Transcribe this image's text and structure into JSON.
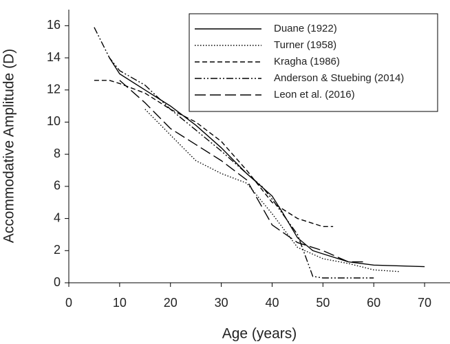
{
  "chart_data": {
    "type": "line",
    "x_label": "Age (years)",
    "y_label": "Accommodative Amplitude (D)",
    "xlim": [
      0,
      75
    ],
    "xticks": [
      0,
      10,
      20,
      30,
      40,
      50,
      60,
      70
    ],
    "ylim": [
      0,
      17
    ],
    "yticks": [
      0,
      2,
      4,
      6,
      8,
      10,
      12,
      14,
      16
    ],
    "legend": "top-right",
    "series": [
      {
        "name": "Duane (1922)",
        "color": "#000000",
        "style": "solid",
        "x": [
          8,
          10,
          15,
          20,
          25,
          30,
          35,
          40,
          42,
          45,
          48,
          50,
          55,
          60,
          70
        ],
        "values": [
          14,
          13,
          12,
          11,
          9.8,
          8.4,
          6.8,
          5.4,
          4.4,
          2.8,
          2.0,
          1.8,
          1.3,
          1.1,
          1.0
        ]
      },
      {
        "name": "Turner (1958)",
        "color": "#000000",
        "style": "dotted",
        "x": [
          15,
          20,
          25,
          30,
          35,
          40,
          45,
          50,
          55,
          60,
          65
        ],
        "values": [
          10.8,
          9.2,
          7.6,
          6.8,
          6.2,
          4.3,
          2.2,
          1.5,
          1.2,
          0.8,
          0.7
        ]
      },
      {
        "name": "Kragha (1986)",
        "color": "#000000",
        "style": "dashed",
        "x": [
          5,
          8,
          10,
          15,
          20,
          25,
          30,
          35,
          40,
          45,
          50,
          52
        ],
        "values": [
          12.6,
          12.6,
          12.4,
          11.8,
          10.8,
          10.0,
          8.8,
          7.0,
          5.0,
          4.0,
          3.5,
          3.5
        ]
      },
      {
        "name": "Anderson & Stuebing (2014)",
        "color": "#000000",
        "style": "dash-dot-dot",
        "x": [
          5,
          8,
          10,
          15,
          20,
          25,
          30,
          35,
          38,
          40,
          45,
          48,
          50,
          55,
          60
        ],
        "values": [
          15.9,
          14,
          13.2,
          12.3,
          10.8,
          9.5,
          8.2,
          6.8,
          6.0,
          5.2,
          3.0,
          0.4,
          0.3,
          0.3,
          0.3
        ]
      },
      {
        "name": "Leon et al. (2016)",
        "color": "#000000",
        "style": "long-dash",
        "x": [
          10,
          15,
          20,
          25,
          30,
          35,
          40,
          45,
          50,
          55,
          58
        ],
        "values": [
          12.6,
          11.2,
          9.6,
          8.6,
          7.6,
          6.4,
          3.6,
          2.5,
          2.0,
          1.3,
          1.3
        ]
      }
    ]
  }
}
